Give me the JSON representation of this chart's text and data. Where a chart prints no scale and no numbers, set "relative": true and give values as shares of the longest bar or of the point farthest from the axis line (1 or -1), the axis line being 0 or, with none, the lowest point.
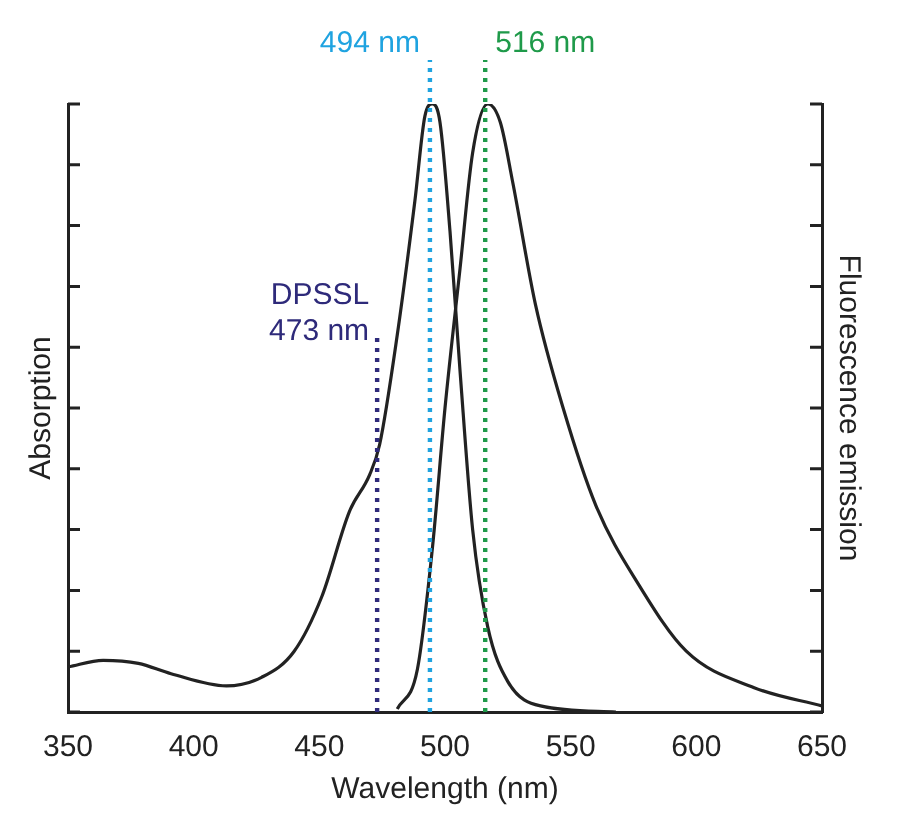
{
  "chart_data": {
    "type": "line",
    "relative": true,
    "xlabel": "Wavelength (nm)",
    "ylabel": "Absorption",
    "y2label": "Fluorescence emission",
    "xlim": [
      350,
      650
    ],
    "xticks": [
      350,
      400,
      450,
      500,
      550,
      600,
      650
    ],
    "grid": false,
    "legend": false,
    "marker": "none",
    "line_style": "solid",
    "series": [
      {
        "color": "#222222",
        "x": [
          350,
          364,
          378,
          391,
          413,
          427,
          440,
          451,
          462,
          470,
          474,
          481,
          488,
          492,
          495,
          498,
          502,
          506,
          511,
          517,
          525,
          538,
          568
        ],
        "values": [
          0.074,
          0.085,
          0.08,
          0.063,
          0.043,
          0.057,
          0.1,
          0.19,
          0.33,
          0.39,
          0.44,
          0.62,
          0.84,
          0.98,
          1.0,
          0.97,
          0.79,
          0.56,
          0.3,
          0.14,
          0.05,
          0.01,
          0
        ]
      },
      {
        "color": "#222222",
        "axis": "y2",
        "x": [
          481,
          489,
          495,
          500,
          506,
          511,
          517,
          522,
          527,
          536,
          547,
          560,
          577,
          596,
          623,
          650
        ],
        "values": [
          0.005,
          0.07,
          0.27,
          0.5,
          0.73,
          0.92,
          1.0,
          0.97,
          0.87,
          0.67,
          0.5,
          0.34,
          0.21,
          0.1,
          0.04,
          0.01
        ]
      }
    ],
    "ref_lines": [
      {
        "axis": "x",
        "value": 473,
        "label": "DPSSL\n473 nm",
        "color": "#2e2a7a",
        "line_style": "dotted"
      },
      {
        "axis": "x",
        "value": 494,
        "label": "494 nm",
        "color": "#1fa3e0",
        "line_style": "dotted"
      },
      {
        "axis": "x",
        "value": 516,
        "label": "516 nm",
        "color": "#1f9a4a",
        "line_style": "dotted"
      }
    ]
  }
}
